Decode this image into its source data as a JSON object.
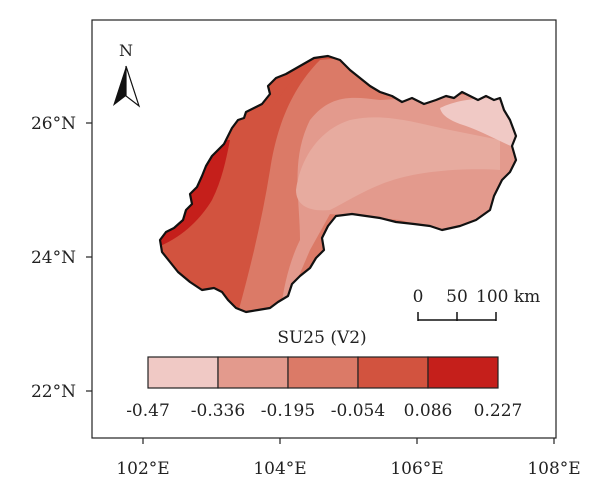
{
  "map": {
    "title": "SU25 (V2)",
    "lat_labels": [
      "26°N",
      "24°N",
      "22°N"
    ],
    "lon_labels": [
      "102°E",
      "104°E",
      "106°E",
      "108°E"
    ],
    "north_label": "N",
    "scale_labels": [
      "0",
      "50",
      "100 km"
    ]
  },
  "legend": {
    "breaks": [
      "-0.47",
      "-0.336",
      "-0.195",
      "-0.054",
      "0.086",
      "0.227"
    ],
    "colors": [
      "#f0c9c5",
      "#e39a8d",
      "#db7a67",
      "#d2533f",
      "#c51f1b"
    ]
  },
  "colors": {
    "region_outline": "#111111",
    "frame": "#222222"
  }
}
